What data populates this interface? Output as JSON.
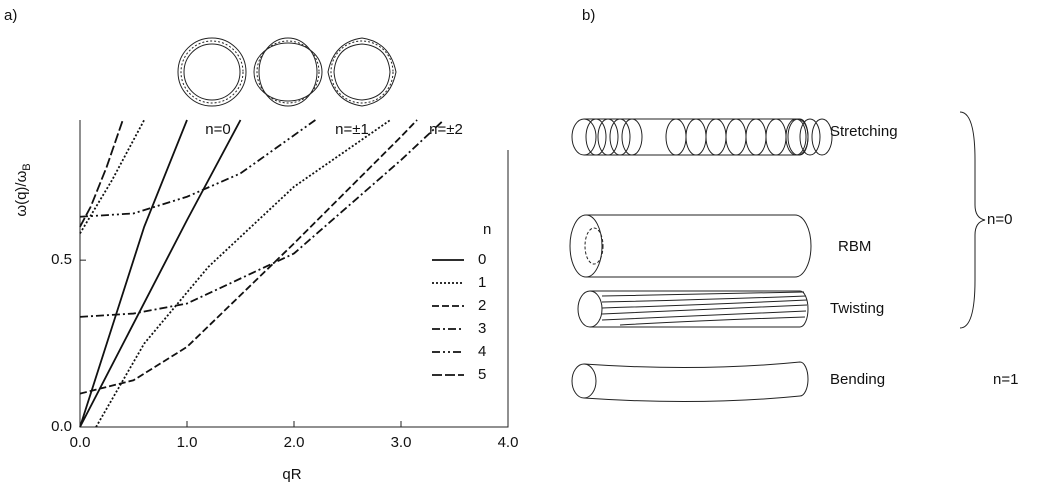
{
  "panel_a": {
    "label": "a)",
    "modes": [
      "n=0",
      "n=±1",
      "n=±2"
    ]
  },
  "chart_data": {
    "type": "line",
    "xlabel": "qR",
    "ylabel": {
      "main": "ω(q)/ω",
      "sub": "B"
    },
    "xlim": [
      0,
      4
    ],
    "ylim": [
      0,
      0.92
    ],
    "xticks": [
      {
        "value": 0,
        "label": "0.0"
      },
      {
        "value": 1,
        "label": "1.0"
      },
      {
        "value": 2,
        "label": "2.0"
      },
      {
        "value": 3,
        "label": "3.0"
      },
      {
        "value": 4,
        "label": "4.0"
      }
    ],
    "yticks": [
      {
        "value": 0,
        "label": "0.0"
      },
      {
        "value": 0.5,
        "label": "0.5"
      }
    ],
    "legend_title": "n",
    "series": [
      {
        "name": "0",
        "color": "#111111",
        "style": "solid",
        "x": [
          0,
          0.3,
          0.6,
          1.0,
          null,
          0,
          0.5,
          1.0,
          1.5
        ],
        "values": [
          0,
          0.3,
          0.6,
          0.92,
          null,
          0,
          0.31,
          0.62,
          0.92
        ]
      },
      {
        "name": "1",
        "color": "#111111",
        "style": "dotted",
        "x": [
          0,
          0.3,
          0.6,
          null,
          0.15,
          0.6,
          1.2,
          2.0,
          2.9
        ],
        "values": [
          0.58,
          0.74,
          0.92,
          null,
          0,
          0.25,
          0.48,
          0.72,
          0.92
        ]
      },
      {
        "name": "2",
        "color": "#111111",
        "style": "dashed",
        "x": [
          0,
          0.5,
          1.0,
          2.0,
          3.0,
          3.15
        ],
        "values": [
          0.1,
          0.14,
          0.24,
          0.55,
          0.87,
          0.92
        ]
      },
      {
        "name": "3",
        "color": "#111111",
        "style": "dashdot",
        "x": [
          0,
          0.5,
          1.0,
          2.0,
          3.0,
          3.4
        ],
        "values": [
          0.33,
          0.34,
          0.37,
          0.52,
          0.8,
          0.92
        ]
      },
      {
        "name": "4",
        "color": "#111111",
        "style": "dashdotdot",
        "x": [
          0,
          0.5,
          1.0,
          1.5,
          2.2
        ],
        "values": [
          0.63,
          0.64,
          0.69,
          0.76,
          0.92
        ]
      },
      {
        "name": "5",
        "color": "#111111",
        "style": "longdash",
        "x": [
          0,
          0.1,
          0.25,
          0.4
        ],
        "values": [
          0.6,
          0.66,
          0.78,
          0.92
        ]
      }
    ]
  },
  "panel_b": {
    "label": "b)",
    "rows": [
      "Stretching",
      "RBM",
      "Twisting",
      "Bending"
    ],
    "groups": [
      "n=0",
      "n=1"
    ]
  }
}
